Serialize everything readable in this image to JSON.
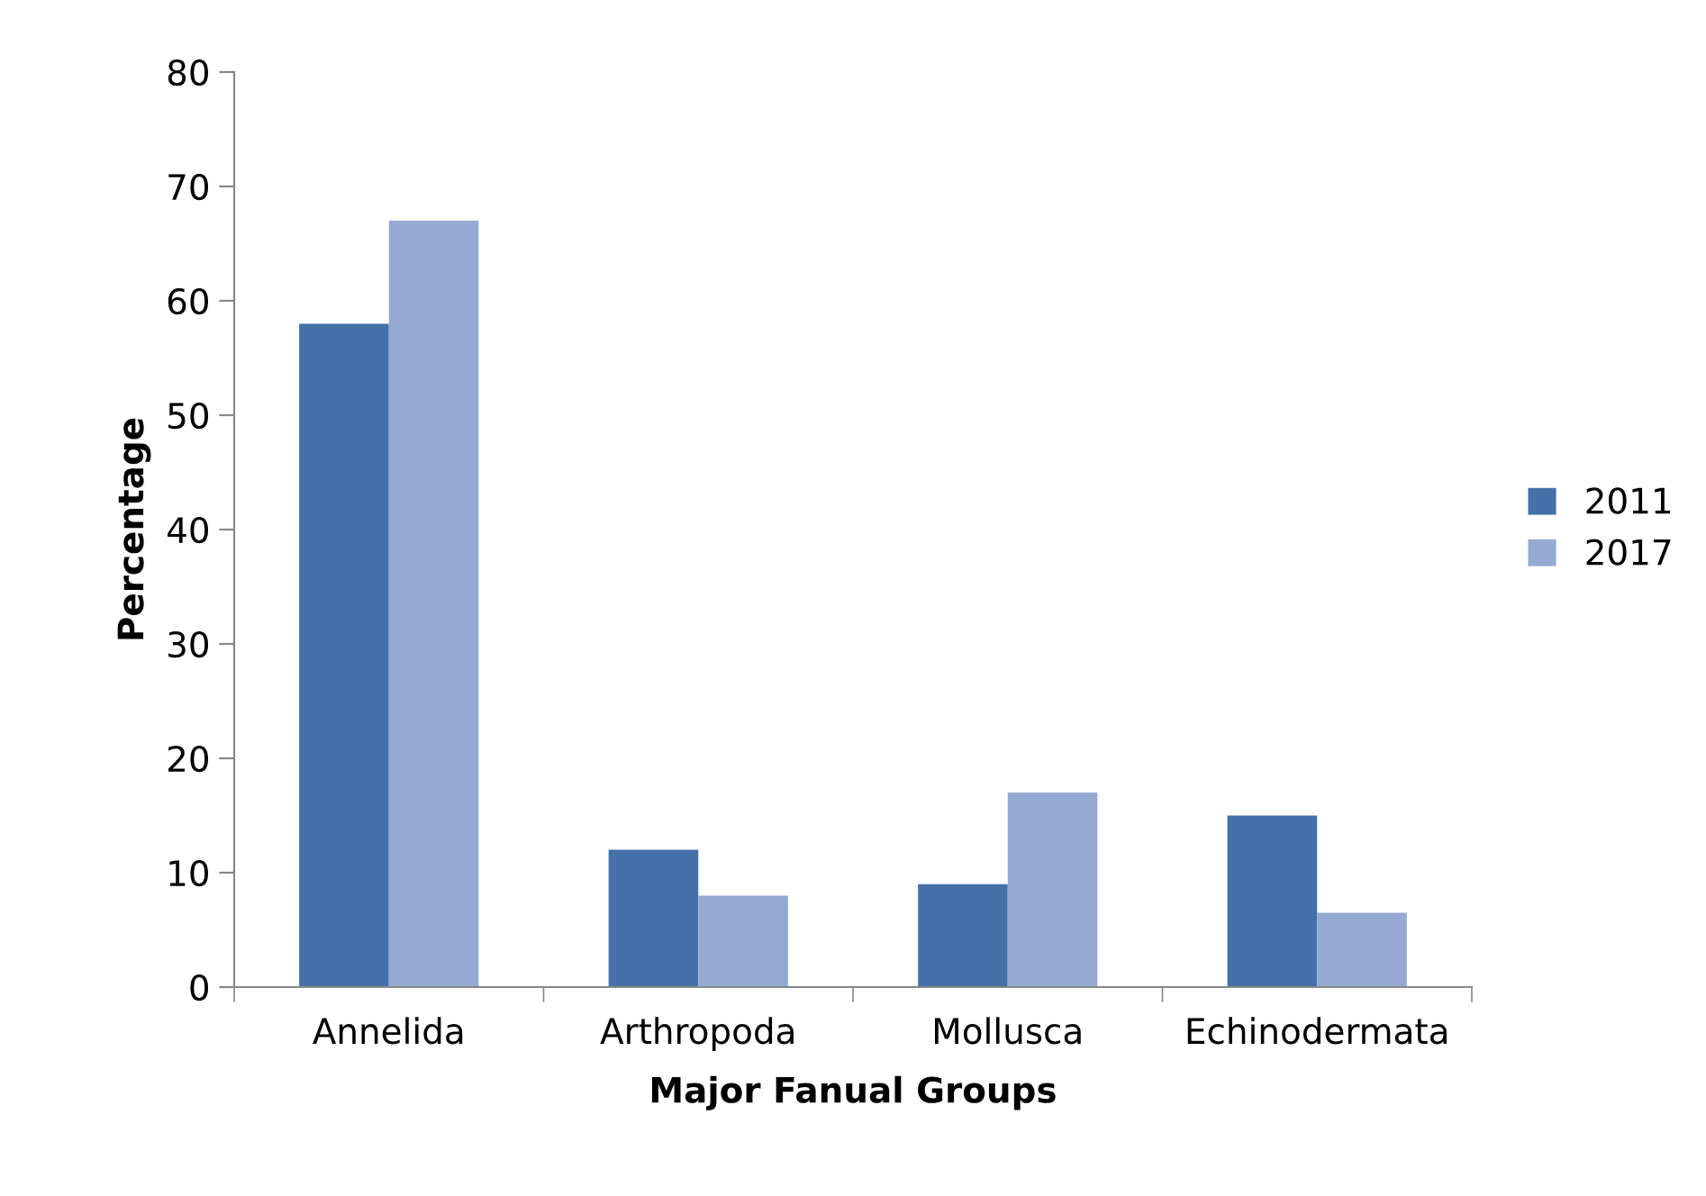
{
  "chart_data": {
    "type": "bar",
    "xlabel": "Major Fanual Groups",
    "ylabel": "Percentage",
    "categories": [
      "Annelida",
      "Arthropoda",
      "Mollusca",
      "Echinodermata"
    ],
    "series": [
      {
        "name": "2011",
        "color": "#4472a8",
        "values": [
          58,
          12,
          9,
          15
        ]
      },
      {
        "name": "2017",
        "color": "#94aad3",
        "values": [
          67,
          8,
          17,
          6.5
        ]
      }
    ],
    "ylim": [
      0,
      80
    ],
    "yticks": [
      0,
      10,
      20,
      30,
      40,
      50,
      60,
      70,
      80
    ],
    "grid": false,
    "legend": "right"
  }
}
